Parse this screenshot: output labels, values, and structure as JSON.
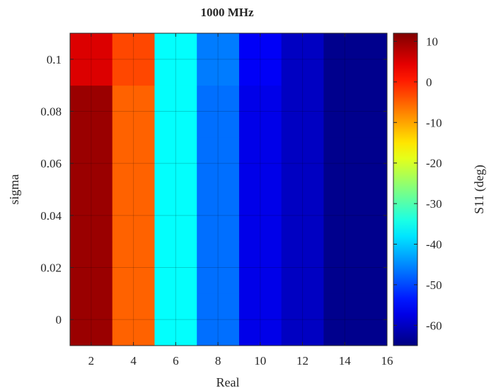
{
  "chart_data": {
    "type": "heatmap",
    "title": "1000 MHz",
    "xlabel": "Real",
    "ylabel": "sigma",
    "colorbar_label": "S11 (deg)",
    "colormap": "jet",
    "clim": [
      -65,
      12
    ],
    "x_range": [
      1,
      16
    ],
    "y_range": [
      -0.01,
      0.11
    ],
    "x_ticks": [
      2,
      4,
      6,
      8,
      10,
      12,
      14,
      16
    ],
    "y_ticks": [
      0,
      0.02,
      0.04,
      0.06,
      0.08,
      0.1
    ],
    "y_tick_labels": [
      "0",
      "0.02",
      "0.04",
      "0.06",
      "0.08",
      "0.1"
    ],
    "colorbar_ticks": [
      10,
      0,
      -10,
      -20,
      -30,
      -40,
      -50,
      -60
    ],
    "grid": true,
    "x_centers": [
      2,
      4,
      6,
      8,
      10,
      12,
      14
    ],
    "y_centers": [
      0,
      0.02,
      0.04,
      0.06,
      0.08,
      0.1
    ],
    "values": [
      [
        10,
        -5,
        -36,
        -47,
        -57,
        -60,
        -64
      ],
      [
        10,
        -5,
        -36,
        -47,
        -57,
        -60,
        -64
      ],
      [
        10,
        -5,
        -36,
        -47,
        -57,
        -60,
        -64
      ],
      [
        10,
        -5,
        -36,
        -47,
        -57,
        -60,
        -64
      ],
      [
        10,
        -5,
        -36,
        -47,
        -57,
        -60,
        -64
      ],
      [
        5,
        -3,
        -36,
        -46,
        -56,
        -60,
        -64
      ]
    ]
  }
}
